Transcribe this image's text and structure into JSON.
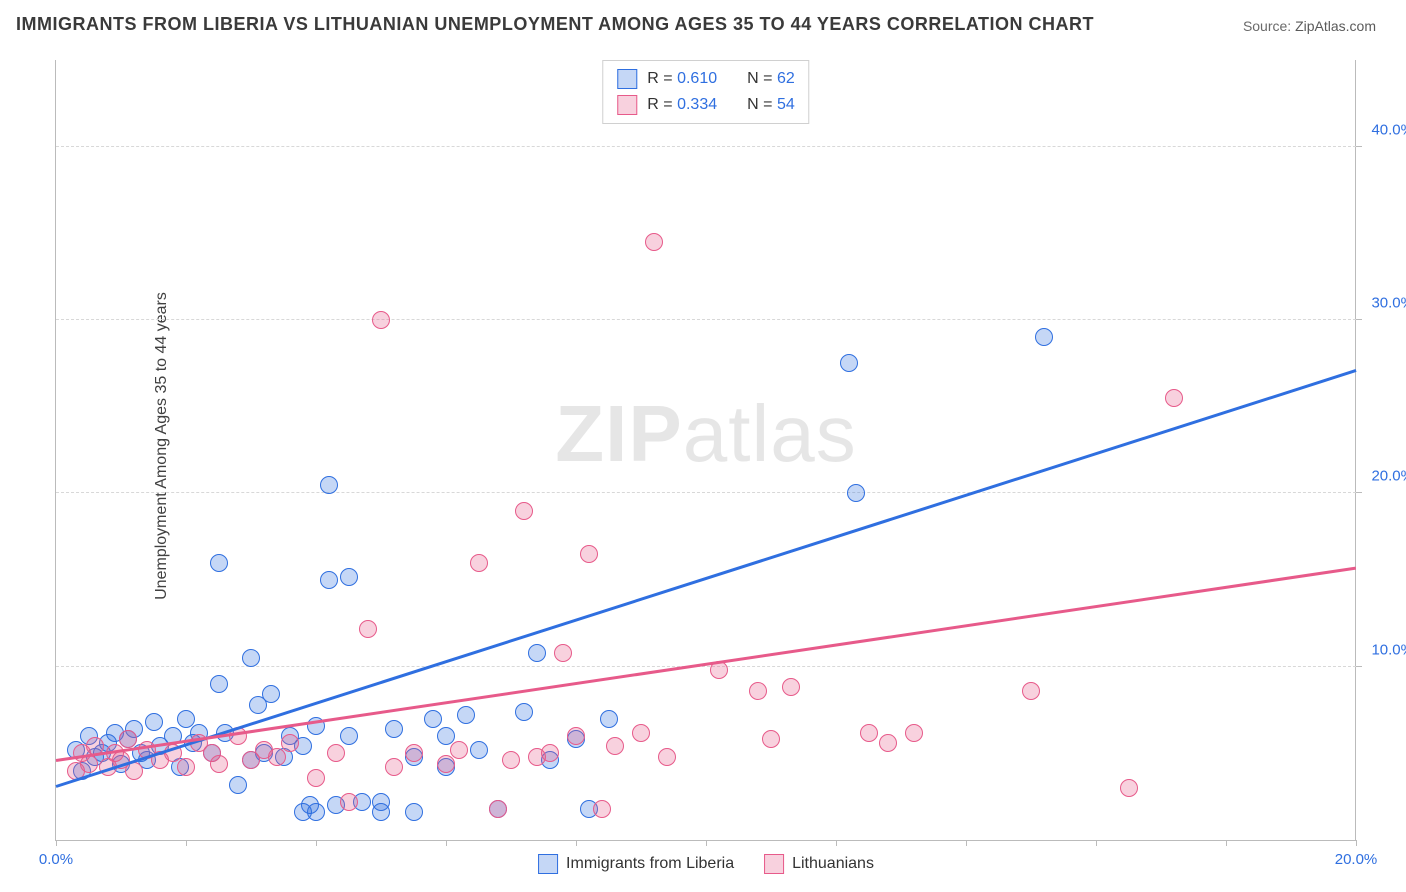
{
  "title": "IMMIGRANTS FROM LIBERIA VS LITHUANIAN UNEMPLOYMENT AMONG AGES 35 TO 44 YEARS CORRELATION CHART",
  "source_label": "Source: ",
  "source_value": "ZipAtlas.com",
  "ylabel": "Unemployment Among Ages 35 to 44 years",
  "watermark_a": "ZIP",
  "watermark_b": "atlas",
  "chart": {
    "type": "scatter",
    "xlim": [
      0,
      20
    ],
    "ylim": [
      0,
      45
    ],
    "x_tick_step": 2,
    "x_labeled_ticks": [
      0,
      20
    ],
    "y_labeled_ticks": [
      10,
      20,
      30,
      40
    ],
    "x_tick_format_suffix": "%",
    "y_tick_format_suffix": "%",
    "grid_color": "#d8d8d8",
    "axis_color": "#bbbbbb",
    "tick_label_color_x": "#2f6fe0",
    "tick_label_color_y": "#2f6fe0",
    "background_color": "#ffffff",
    "marker_radius": 9,
    "marker_border_width": 1.5,
    "marker_fill_opacity": 0.28,
    "trend_line_width": 3
  },
  "series": [
    {
      "key": "liberia",
      "label": "Immigrants from Liberia",
      "color": "#2f6fe0",
      "fill": "rgba(47,111,224,0.28)",
      "r": "0.610",
      "n": "62",
      "trend": {
        "x1": 0,
        "y1": 3.0,
        "x2": 20,
        "y2": 27.0
      },
      "points": [
        [
          0.3,
          5.2
        ],
        [
          0.4,
          4.0
        ],
        [
          0.5,
          6.0
        ],
        [
          0.6,
          4.8
        ],
        [
          0.7,
          5.0
        ],
        [
          0.8,
          5.6
        ],
        [
          0.9,
          6.2
        ],
        [
          1.0,
          4.4
        ],
        [
          1.1,
          5.8
        ],
        [
          1.2,
          6.4
        ],
        [
          1.3,
          5.0
        ],
        [
          1.4,
          4.6
        ],
        [
          1.5,
          6.8
        ],
        [
          1.6,
          5.4
        ],
        [
          1.8,
          6.0
        ],
        [
          1.9,
          4.2
        ],
        [
          2.0,
          7.0
        ],
        [
          2.1,
          5.6
        ],
        [
          2.2,
          6.2
        ],
        [
          2.4,
          5.0
        ],
        [
          2.5,
          9.0
        ],
        [
          2.5,
          16.0
        ],
        [
          2.6,
          6.2
        ],
        [
          2.8,
          3.2
        ],
        [
          3.0,
          10.5
        ],
        [
          3.0,
          4.6
        ],
        [
          3.1,
          7.8
        ],
        [
          3.2,
          5.0
        ],
        [
          3.3,
          8.4
        ],
        [
          3.5,
          4.8
        ],
        [
          3.6,
          6.0
        ],
        [
          3.8,
          1.6
        ],
        [
          3.8,
          5.4
        ],
        [
          3.9,
          2.0
        ],
        [
          4.0,
          6.6
        ],
        [
          4.0,
          1.6
        ],
        [
          4.2,
          15.0
        ],
        [
          4.2,
          20.5
        ],
        [
          4.3,
          2.0
        ],
        [
          4.5,
          6.0
        ],
        [
          4.5,
          15.2
        ],
        [
          4.7,
          2.2
        ],
        [
          5.0,
          1.6
        ],
        [
          5.2,
          6.4
        ],
        [
          5.5,
          1.6
        ],
        [
          5.8,
          7.0
        ],
        [
          6.0,
          4.2
        ],
        [
          6.3,
          7.2
        ],
        [
          6.5,
          5.2
        ],
        [
          6.8,
          1.8
        ],
        [
          7.2,
          7.4
        ],
        [
          7.4,
          10.8
        ],
        [
          7.6,
          4.6
        ],
        [
          8.0,
          5.8
        ],
        [
          8.2,
          1.8
        ],
        [
          8.5,
          7.0
        ],
        [
          12.2,
          27.5
        ],
        [
          12.3,
          20.0
        ],
        [
          15.2,
          29.0
        ],
        [
          5.0,
          2.2
        ],
        [
          5.5,
          4.8
        ],
        [
          6.0,
          6.0
        ]
      ]
    },
    {
      "key": "lithuanian",
      "label": "Lithuanians",
      "color": "#e75a8a",
      "fill": "rgba(231,90,138,0.28)",
      "r": "0.334",
      "n": "54",
      "trend": {
        "x1": 0,
        "y1": 4.5,
        "x2": 20,
        "y2": 15.6
      },
      "points": [
        [
          0.3,
          4.0
        ],
        [
          0.4,
          5.0
        ],
        [
          0.5,
          4.4
        ],
        [
          0.6,
          5.4
        ],
        [
          0.8,
          4.2
        ],
        [
          0.9,
          5.0
        ],
        [
          1.0,
          4.6
        ],
        [
          1.1,
          5.8
        ],
        [
          1.2,
          4.0
        ],
        [
          1.4,
          5.2
        ],
        [
          1.6,
          4.6
        ],
        [
          1.8,
          5.0
        ],
        [
          2.0,
          4.2
        ],
        [
          2.2,
          5.6
        ],
        [
          2.4,
          5.0
        ],
        [
          2.5,
          4.4
        ],
        [
          2.8,
          6.0
        ],
        [
          3.0,
          4.6
        ],
        [
          3.2,
          5.2
        ],
        [
          3.4,
          4.8
        ],
        [
          3.6,
          5.6
        ],
        [
          4.0,
          3.6
        ],
        [
          4.3,
          5.0
        ],
        [
          4.5,
          2.2
        ],
        [
          4.8,
          12.2
        ],
        [
          5.0,
          30.0
        ],
        [
          5.2,
          4.2
        ],
        [
          6.0,
          4.4
        ],
        [
          6.2,
          5.2
        ],
        [
          6.5,
          16.0
        ],
        [
          6.8,
          1.8
        ],
        [
          7.0,
          4.6
        ],
        [
          7.2,
          19.0
        ],
        [
          7.4,
          4.8
        ],
        [
          7.8,
          10.8
        ],
        [
          8.0,
          6.0
        ],
        [
          8.2,
          16.5
        ],
        [
          8.4,
          1.8
        ],
        [
          8.6,
          5.4
        ],
        [
          9.0,
          6.2
        ],
        [
          9.2,
          34.5
        ],
        [
          9.4,
          4.8
        ],
        [
          10.2,
          9.8
        ],
        [
          10.8,
          8.6
        ],
        [
          11.0,
          5.8
        ],
        [
          11.3,
          8.8
        ],
        [
          12.5,
          6.2
        ],
        [
          12.8,
          5.6
        ],
        [
          13.2,
          6.2
        ],
        [
          15.0,
          8.6
        ],
        [
          16.5,
          3.0
        ],
        [
          17.2,
          25.5
        ],
        [
          7.6,
          5.0
        ],
        [
          5.5,
          5.0
        ]
      ]
    }
  ],
  "legend_top": {
    "r_label": "R",
    "eq": "=",
    "n_label": "N"
  }
}
